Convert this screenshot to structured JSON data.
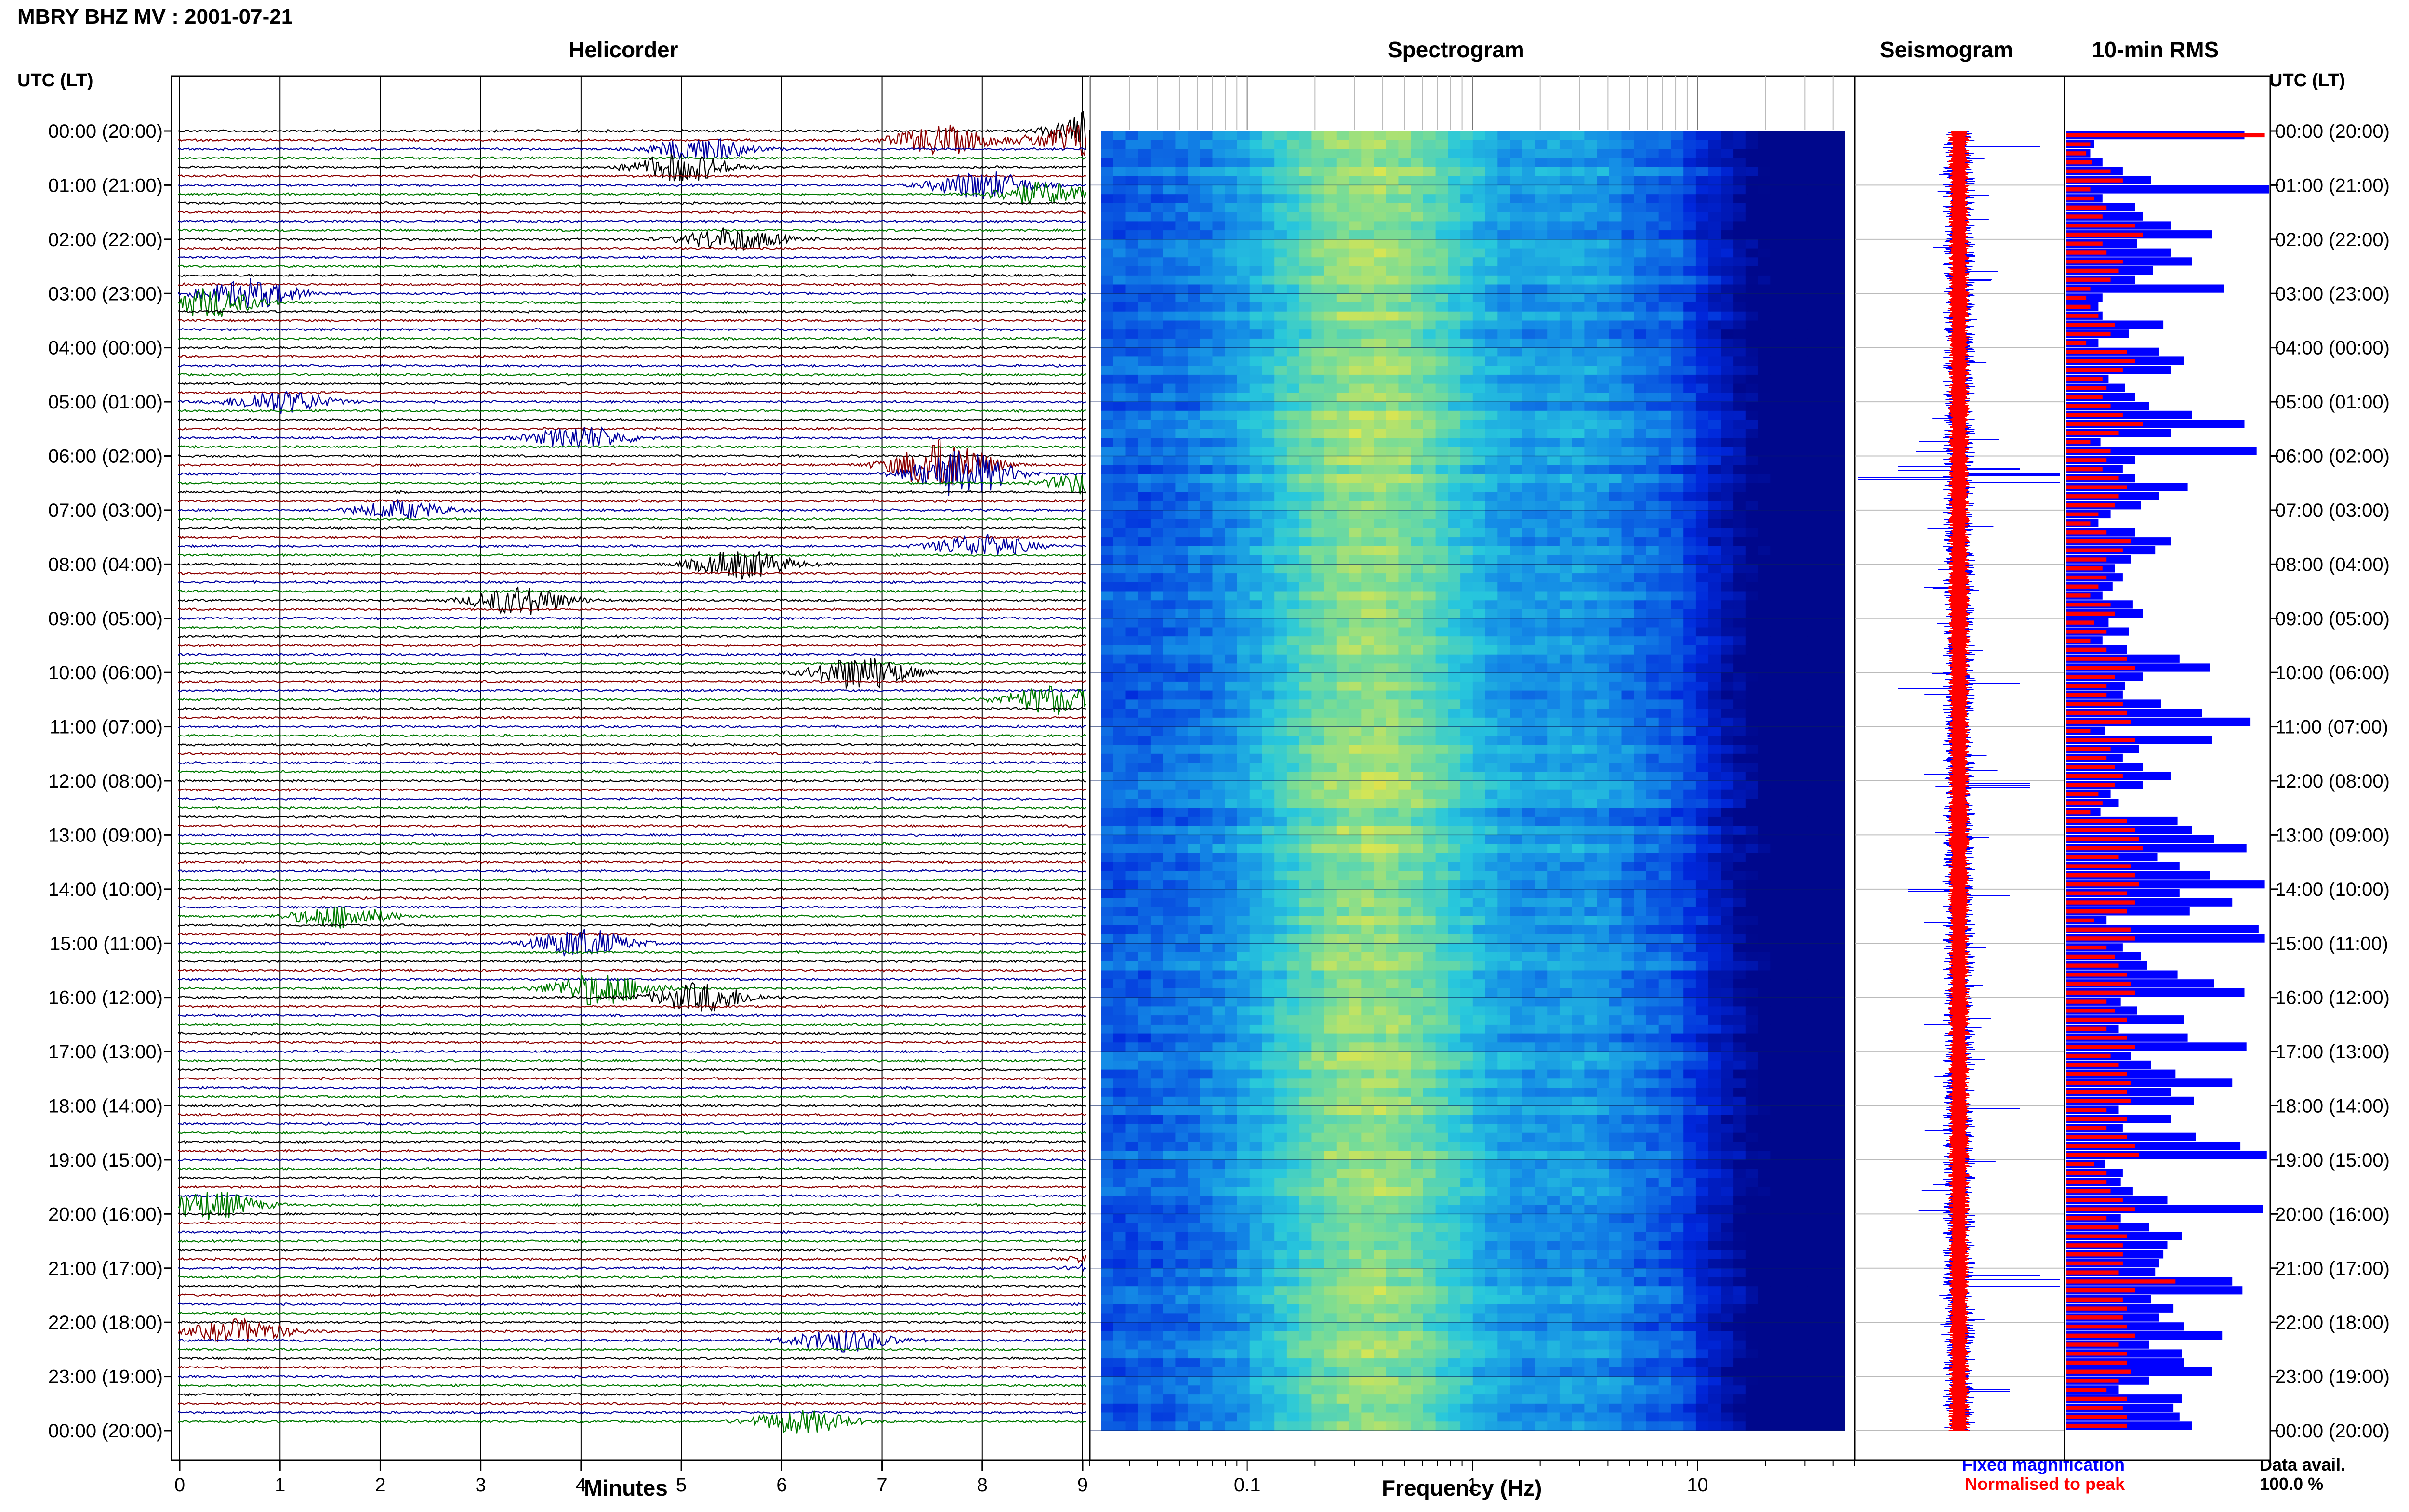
{
  "station_title": "MBRY BHZ MV : 2001-07-21",
  "panels": {
    "helicorder": "Helicorder",
    "spectrogram": "Spectrogram",
    "seismogram": "Seismogram",
    "rms": "10-min RMS"
  },
  "axis_labels": {
    "utc_left": "UTC (LT)",
    "utc_right": "UTC (LT)",
    "minutes": "Minutes",
    "frequency": "Frequency (Hz)"
  },
  "legend": {
    "fixed": "Fixed magnification",
    "normalised": "Normalised to peak",
    "data_avail_label": "Data avail.",
    "data_avail_value": "100.0 %"
  },
  "colors": {
    "trace_cycle": [
      "#000000",
      "#8b0000",
      "#0000a0",
      "#007a00"
    ],
    "fixed_blue": "#0000ff",
    "normalised_red": "#ff0000"
  },
  "chart_data": [
    {
      "type": "line",
      "name": "helicorder",
      "xlabel": "Minutes",
      "x_ticks": [
        0,
        1,
        2,
        3,
        4,
        5,
        6,
        7,
        8,
        9
      ],
      "xlim": [
        0,
        10
      ],
      "y_tick_labels": [
        "00:00 (20:00)",
        "01:00 (21:00)",
        "02:00 (22:00)",
        "03:00 (23:00)",
        "04:00 (00:00)",
        "05:00 (01:00)",
        "06:00 (02:00)",
        "07:00 (03:00)",
        "08:00 (04:00)",
        "09:00 (05:00)",
        "10:00 (06:00)",
        "11:00 (07:00)",
        "12:00 (08:00)",
        "13:00 (09:00)",
        "14:00 (10:00)",
        "15:00 (11:00)",
        "16:00 (12:00)",
        "17:00 (13:00)",
        "18:00 (14:00)",
        "19:00 (15:00)",
        "20:00 (16:00)",
        "21:00 (17:00)",
        "22:00 (18:00)",
        "23:00 (19:00)",
        "00:00 (20:00)"
      ],
      "lines_per_hour": 6,
      "events": [
        {
          "row": 0,
          "minute": 9.3,
          "amp": 1.0
        },
        {
          "row": 1,
          "minute": 7.6,
          "amp": 0.5
        },
        {
          "row": 1,
          "minute": 9.0,
          "amp": 0.6
        },
        {
          "row": 2,
          "minute": 5.2,
          "amp": 0.4
        },
        {
          "row": 4,
          "minute": 5.0,
          "amp": 0.5
        },
        {
          "row": 6,
          "minute": 8.0,
          "amp": 0.5
        },
        {
          "row": 7,
          "minute": 8.6,
          "amp": 0.4
        },
        {
          "row": 12,
          "minute": 5.5,
          "amp": 0.4
        },
        {
          "row": 18,
          "minute": 0.7,
          "amp": 0.5
        },
        {
          "row": 19,
          "minute": 9.6,
          "amp": 0.7
        },
        {
          "row": 19,
          "minute": 0.3,
          "amp": 0.5
        },
        {
          "row": 30,
          "minute": 1.0,
          "amp": 0.4
        },
        {
          "row": 34,
          "minute": 4.0,
          "amp": 0.4
        },
        {
          "row": 37,
          "minute": 7.6,
          "amp": 0.9
        },
        {
          "row": 38,
          "minute": 7.8,
          "amp": 0.8
        },
        {
          "row": 39,
          "minute": 9.2,
          "amp": 0.5
        },
        {
          "row": 42,
          "minute": 2.2,
          "amp": 0.3
        },
        {
          "row": 46,
          "minute": 8.0,
          "amp": 0.4
        },
        {
          "row": 48,
          "minute": 5.6,
          "amp": 0.5
        },
        {
          "row": 52,
          "minute": 3.4,
          "amp": 0.5
        },
        {
          "row": 60,
          "minute": 6.8,
          "amp": 0.6
        },
        {
          "row": 63,
          "minute": 8.7,
          "amp": 0.5
        },
        {
          "row": 87,
          "minute": 1.6,
          "amp": 0.4
        },
        {
          "row": 90,
          "minute": 4.0,
          "amp": 0.5
        },
        {
          "row": 95,
          "minute": 4.2,
          "amp": 0.6
        },
        {
          "row": 96,
          "minute": 5.2,
          "amp": 0.5
        },
        {
          "row": 119,
          "minute": 0.3,
          "amp": 0.5
        },
        {
          "row": 125,
          "minute": 9.6,
          "amp": 0.8
        },
        {
          "row": 126,
          "minute": 9.6,
          "amp": 0.7
        },
        {
          "row": 133,
          "minute": 0.6,
          "amp": 0.4
        },
        {
          "row": 134,
          "minute": 6.6,
          "amp": 0.4
        },
        {
          "row": 143,
          "minute": 6.2,
          "amp": 0.4
        }
      ]
    },
    {
      "type": "heatmap",
      "name": "spectrogram",
      "xlabel": "Frequency (Hz)",
      "x_scale": "log",
      "xlim": [
        0.02,
        50
      ],
      "x_tick_labels": [
        "0.1",
        "1",
        "10"
      ],
      "peak_band_hz": [
        0.2,
        5
      ]
    },
    {
      "type": "line",
      "name": "seismogram",
      "series": [
        {
          "name": "Fixed magnification",
          "color": "#0000ff"
        },
        {
          "name": "Normalised to peak",
          "color": "#ff0000"
        }
      ],
      "spikes": [
        {
          "row": 1,
          "amp": 0.4
        },
        {
          "row": 34,
          "amp": 0.2
        },
        {
          "row": 37,
          "amp": 0.3
        },
        {
          "row": 38,
          "amp": 0.5
        },
        {
          "row": 61,
          "amp": 0.3
        },
        {
          "row": 72,
          "amp": 0.35
        },
        {
          "row": 84,
          "amp": 0.25
        },
        {
          "row": 108,
          "amp": 0.3
        },
        {
          "row": 126,
          "amp": 0.4
        },
        {
          "row": 127,
          "amp": 0.5
        },
        {
          "row": 139,
          "amp": 0.25
        }
      ]
    },
    {
      "type": "bar",
      "name": "10-min RMS",
      "orientation": "horizontal",
      "bins": 144,
      "blue_profile": [
        0.88,
        0.14,
        0.12,
        0.18,
        0.28,
        0.42,
        1.0,
        0.18,
        0.34,
        0.38,
        0.52,
        0.72,
        0.35,
        0.52,
        0.62,
        0.43,
        0.34,
        0.78,
        0.18,
        0.16,
        0.18,
        0.48,
        0.31,
        0.16,
        0.46,
        0.58,
        0.52,
        0.21,
        0.29,
        0.34,
        0.41,
        0.62,
        0.88,
        0.52,
        0.17,
        0.94,
        0.34,
        0.28,
        0.34,
        0.6,
        0.46,
        0.37,
        0.22,
        0.16,
        0.34,
        0.52,
        0.44,
        0.32,
        0.24,
        0.28,
        0.23,
        0.18,
        0.33,
        0.38,
        0.21,
        0.31,
        0.18,
        0.3,
        0.56,
        0.71,
        0.38,
        0.29,
        0.28,
        0.47,
        0.67,
        0.91,
        0.19,
        0.72,
        0.36,
        0.28,
        0.38,
        0.52,
        0.38,
        0.22,
        0.26,
        0.17,
        0.55,
        0.62,
        0.73,
        0.89,
        0.45,
        0.56,
        0.71,
        0.98,
        0.56,
        0.82,
        0.61,
        0.2,
        0.95,
        0.98,
        0.28,
        0.37,
        0.4,
        0.55,
        0.73,
        0.88,
        0.27,
        0.35,
        0.58,
        0.26,
        0.6,
        0.89,
        0.32,
        0.42,
        0.54,
        0.82,
        0.52,
        0.63,
        0.26,
        0.52,
        0.28,
        0.64,
        0.86,
        0.99,
        0.19,
        0.28,
        0.27,
        0.33,
        0.5,
        0.97,
        0.27,
        0.41,
        0.57,
        0.5,
        0.48,
        0.46,
        0.44,
        0.82,
        0.87,
        0.42,
        0.53,
        0.46,
        0.58,
        0.77,
        0.41,
        0.57,
        0.58,
        0.72,
        0.41,
        0.26,
        0.57,
        0.53,
        0.56,
        0.62
      ],
      "red_profile": [
        0.98,
        0.12,
        0.1,
        0.13,
        0.22,
        0.28,
        0.12,
        0.14,
        0.2,
        0.18,
        0.34,
        0.38,
        0.18,
        0.2,
        0.28,
        0.26,
        0.22,
        0.12,
        0.1,
        0.12,
        0.16,
        0.24,
        0.22,
        0.1,
        0.3,
        0.34,
        0.28,
        0.18,
        0.2,
        0.18,
        0.22,
        0.28,
        0.38,
        0.26,
        0.12,
        0.22,
        0.2,
        0.18,
        0.26,
        0.3,
        0.26,
        0.24,
        0.16,
        0.12,
        0.2,
        0.32,
        0.28,
        0.2,
        0.18,
        0.2,
        0.16,
        0.12,
        0.22,
        0.24,
        0.14,
        0.2,
        0.12,
        0.2,
        0.3,
        0.34,
        0.24,
        0.2,
        0.2,
        0.28,
        0.3,
        0.32,
        0.12,
        0.34,
        0.22,
        0.2,
        0.24,
        0.28,
        0.24,
        0.16,
        0.18,
        0.12,
        0.3,
        0.34,
        0.36,
        0.38,
        0.26,
        0.32,
        0.34,
        0.36,
        0.3,
        0.34,
        0.3,
        0.14,
        0.32,
        0.34,
        0.2,
        0.24,
        0.26,
        0.3,
        0.32,
        0.34,
        0.2,
        0.24,
        0.3,
        0.2,
        0.3,
        0.34,
        0.22,
        0.26,
        0.3,
        0.32,
        0.3,
        0.32,
        0.2,
        0.3,
        0.2,
        0.3,
        0.34,
        0.36,
        0.14,
        0.2,
        0.2,
        0.22,
        0.28,
        0.34,
        0.2,
        0.26,
        0.3,
        0.28,
        0.28,
        0.28,
        0.26,
        0.54,
        0.34,
        0.28,
        0.3,
        0.28,
        0.3,
        0.34,
        0.26,
        0.3,
        0.3,
        0.32,
        0.26,
        0.2,
        0.3,
        0.28,
        0.3,
        0.3
      ]
    }
  ]
}
